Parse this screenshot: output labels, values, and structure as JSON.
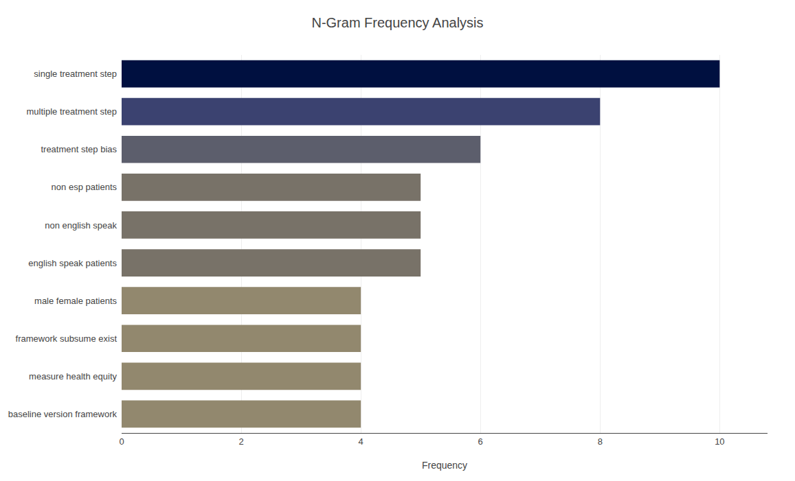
{
  "chart_data": {
    "type": "bar",
    "orientation": "horizontal",
    "title": "N-Gram Frequency Analysis",
    "categories": [
      "baseline version framework",
      "measure health equity",
      "framework subsume exist",
      "male female patients",
      "english speak patients",
      "non english speak",
      "non esp patients",
      "treatment step bias",
      "multiple treatment step",
      "single treatment step"
    ],
    "values": [
      4,
      4,
      4,
      4,
      5,
      5,
      5,
      6,
      8,
      10
    ],
    "colors": [
      "#92886e",
      "#92886e",
      "#92886e",
      "#92886e",
      "#787268",
      "#787268",
      "#787268",
      "#5c5e6c",
      "#3b4270",
      "#001040"
    ],
    "xlabel": "Frequency",
    "xlim": [
      0,
      10.8
    ],
    "xticks": [
      0,
      2,
      4,
      6,
      8,
      10
    ],
    "grid": true
  }
}
